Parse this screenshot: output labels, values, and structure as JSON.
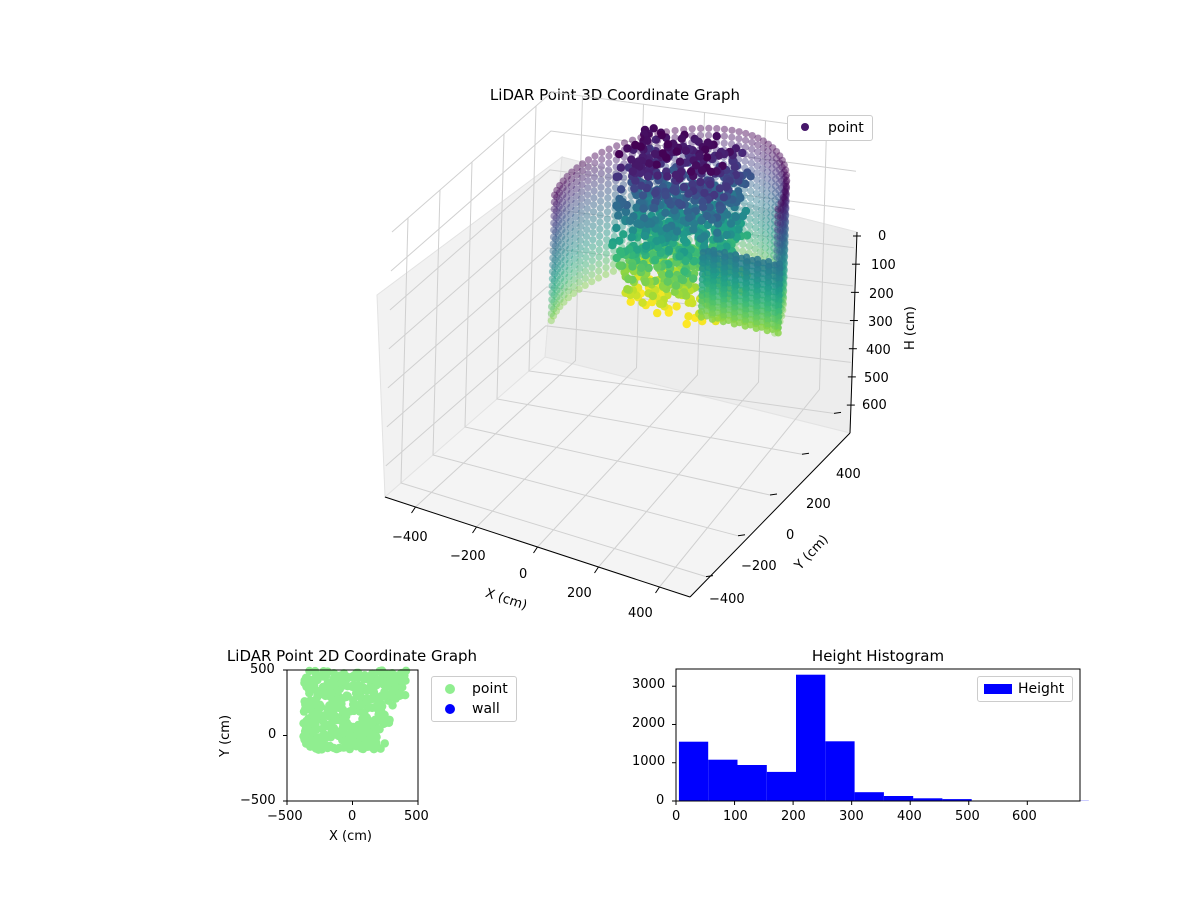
{
  "chart_data": [
    {
      "type": "scatter",
      "subtype": "scatter-3d",
      "title": "LiDAR Point 3D Coordinate Graph",
      "xlabel": "X (cm)",
      "ylabel": "Y (cm)",
      "zlabel": "H (cm)",
      "xticks": [
        "−400",
        "−200",
        "0",
        "200",
        "400"
      ],
      "yticks": [
        "−400",
        "−200",
        "0",
        "200",
        "400"
      ],
      "zticks": [
        "0",
        "100",
        "200",
        "300",
        "400",
        "500",
        "600"
      ],
      "xlim": [
        -500,
        500
      ],
      "ylim": [
        -500,
        500
      ],
      "zlim": [
        0,
        680
      ],
      "z_inverted": true,
      "colormap": "viridis",
      "legend": [
        {
          "name": "point",
          "color": "#46176a"
        }
      ],
      "legend_position": "top-right",
      "grid": true
    },
    {
      "type": "scatter",
      "title": "LiDAR Point 2D Coordinate Graph",
      "xlabel": "X (cm)",
      "ylabel": "Y (cm)",
      "xticks": [
        "−500",
        "0",
        "500"
      ],
      "yticks": [
        "500",
        "0",
        "−500"
      ],
      "xlim": [
        -500,
        500
      ],
      "ylim": [
        -500,
        500
      ],
      "series": [
        {
          "name": "point",
          "color": "#90ee90"
        },
        {
          "name": "wall",
          "color": "#0000ff"
        }
      ],
      "legend_position": "outside right"
    },
    {
      "type": "bar",
      "subtype": "histogram",
      "title": "Height Histogram",
      "bin_width": 50,
      "bin_starts": [
        0,
        50,
        100,
        150,
        200,
        250,
        300,
        350,
        400,
        450,
        500,
        550,
        600,
        650
      ],
      "values": [
        1550,
        1080,
        940,
        760,
        3300,
        1560,
        230,
        130,
        70,
        50,
        10,
        10,
        5,
        5
      ],
      "xticks": [
        "0",
        "100",
        "200",
        "300",
        "400",
        "500",
        "600"
      ],
      "yticks": [
        "0",
        "1000",
        "2000",
        "3000"
      ],
      "xlim": [
        0,
        690
      ],
      "ylim": [
        0,
        3450
      ],
      "series": [
        {
          "name": "Height",
          "color": "#0000ff"
        }
      ],
      "legend_position": "top-right"
    }
  ]
}
